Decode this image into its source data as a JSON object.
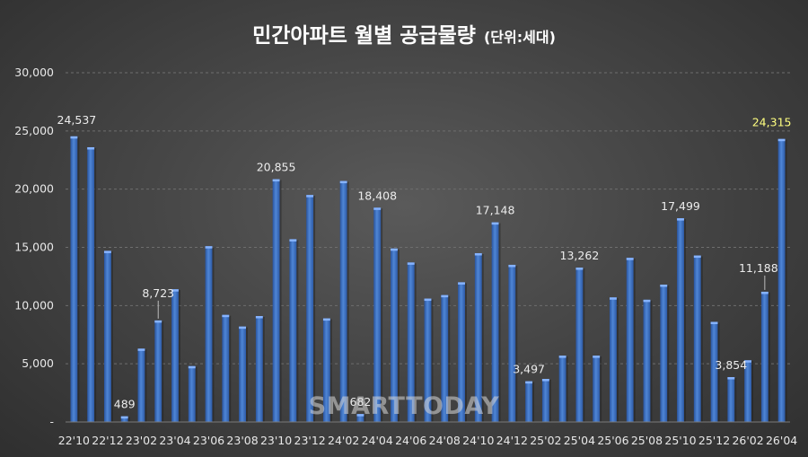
{
  "chart_data": {
    "type": "bar",
    "title": "민간아파트 월별 공급물량",
    "subtitle": "(단위:세대)",
    "xlabel": "",
    "ylabel": "",
    "ylim": [
      0,
      30000
    ],
    "yticks": [
      "-",
      "5,000",
      "10,000",
      "15,000",
      "20,000",
      "25,000",
      "30,000"
    ],
    "grid": true,
    "legend": "none",
    "bar_color": "#3f75c4",
    "highlight_label_color": "#ffff80",
    "categories": [
      "22'10",
      "22'11",
      "22'12",
      "23'01",
      "23'02",
      "23'03",
      "23'04",
      "23'05",
      "23'06",
      "23'07",
      "23'08",
      "23'09",
      "23'10",
      "23'11",
      "23'12",
      "24'01",
      "24'02",
      "24'03",
      "24'04",
      "24'05",
      "24'06",
      "24'07",
      "24'08",
      "24'09",
      "24'10",
      "24'11",
      "24'12",
      "25'01",
      "25'02",
      "25'03",
      "25'04",
      "25'05",
      "25'06",
      "25'07",
      "25'08",
      "25'09",
      "25'10",
      "25'11",
      "25'12",
      "26'01",
      "26'02",
      "26'03",
      "26'04"
    ],
    "tick_labels": [
      "22'10",
      "",
      "22'12",
      "",
      "23'02",
      "",
      "23'04",
      "",
      "23'06",
      "",
      "23'08",
      "",
      "23'10",
      "",
      "23'12",
      "",
      "24'02",
      "",
      "24'04",
      "",
      "24'06",
      "",
      "24'08",
      "",
      "24'10",
      "",
      "24'12",
      "",
      "25'02",
      "",
      "25'04",
      "",
      "25'06",
      "",
      "25'08",
      "",
      "25'10",
      "",
      "25'12",
      "",
      "26'02",
      "",
      "26'04"
    ],
    "values": [
      24537,
      23600,
      14700,
      489,
      6300,
      8723,
      11400,
      4800,
      15100,
      9200,
      8200,
      9100,
      20855,
      15700,
      19500,
      8900,
      20700,
      682,
      18408,
      14900,
      13700,
      10600,
      10900,
      12000,
      14500,
      17148,
      13500,
      3497,
      3700,
      5700,
      13262,
      5700,
      10700,
      14100,
      10500,
      11800,
      17499,
      14300,
      8600,
      3854,
      5300,
      11188,
      24315
    ],
    "data_labels": [
      "24,537",
      "",
      "",
      "489",
      "",
      "8,723",
      "",
      "",
      "",
      "",
      "",
      "",
      "20,855",
      "",
      "",
      "",
      "",
      "682",
      "18,408",
      "",
      "",
      "",
      "",
      "",
      "",
      "17,148",
      "",
      "3,497",
      "",
      "",
      "13,262",
      "",
      "",
      "",
      "",
      "",
      "17,499",
      "",
      "",
      "3,854",
      "",
      "11,188",
      "24,315"
    ]
  },
  "watermark": "SMARTTODAY"
}
